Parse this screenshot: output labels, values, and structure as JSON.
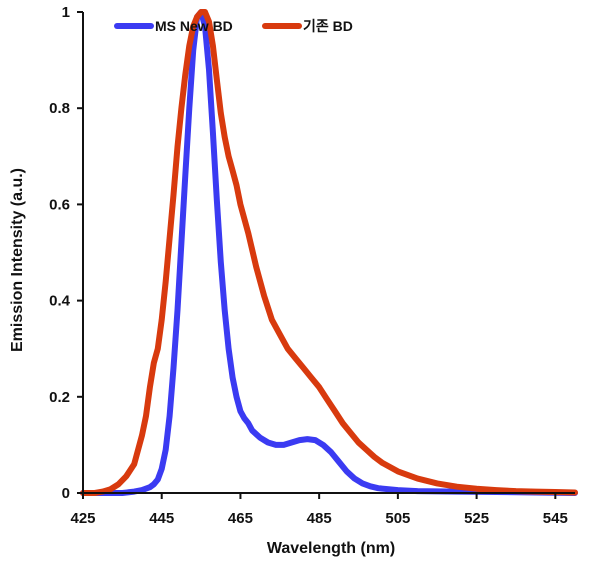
{
  "chart_data": {
    "type": "line",
    "xlabel": "Wavelength (nm)",
    "ylabel": "Emission Intensity (a.u.)",
    "xlim": [
      425,
      550
    ],
    "ylim": [
      0,
      1
    ],
    "x_ticks": [
      425,
      445,
      465,
      485,
      505,
      525,
      545
    ],
    "x_tick_labels": [
      "425",
      "445",
      "465",
      "485",
      "505",
      "525",
      "545"
    ],
    "y_ticks": [
      0,
      0.2,
      0.4,
      0.6,
      0.8,
      1
    ],
    "y_tick_labels": [
      "0",
      "0.2",
      "0.4",
      "0.6",
      "0.8",
      "1"
    ],
    "grid": false,
    "legend_position": "top-left",
    "series": [
      {
        "name": "MS New BD",
        "color": "#3b3bf2",
        "x": [
          425,
          430,
          435,
          438,
          440,
          442,
          443,
          444,
          445,
          446,
          447,
          448,
          449,
          450,
          451,
          452,
          453,
          454,
          455,
          456,
          457,
          458,
          459,
          460,
          461,
          462,
          463,
          464,
          465,
          466,
          467,
          468,
          470,
          472,
          474,
          476,
          478,
          480,
          482,
          484,
          486,
          488,
          490,
          492,
          494,
          496,
          498,
          500,
          505,
          510,
          520,
          530,
          540,
          550
        ],
        "y": [
          0,
          0,
          0,
          0.003,
          0.006,
          0.012,
          0.018,
          0.028,
          0.05,
          0.09,
          0.16,
          0.26,
          0.38,
          0.52,
          0.66,
          0.8,
          0.92,
          0.99,
          1.0,
          0.97,
          0.88,
          0.75,
          0.61,
          0.48,
          0.38,
          0.3,
          0.24,
          0.2,
          0.17,
          0.155,
          0.145,
          0.13,
          0.115,
          0.105,
          0.1,
          0.1,
          0.105,
          0.11,
          0.112,
          0.11,
          0.1,
          0.085,
          0.065,
          0.045,
          0.03,
          0.02,
          0.014,
          0.01,
          0.006,
          0.004,
          0.003,
          0.002,
          0.001,
          0
        ]
      },
      {
        "name": "기존 BD",
        "color": "#d83a0e",
        "x": [
          425,
          428,
          430,
          432,
          434,
          436,
          438,
          440,
          441,
          442,
          443,
          444,
          445,
          446,
          447,
          448,
          449,
          450,
          451,
          452,
          453,
          454,
          455,
          456,
          457,
          458,
          459,
          460,
          461,
          462,
          463,
          464,
          465,
          467,
          469,
          471,
          473,
          475,
          477,
          479,
          481,
          483,
          485,
          487,
          489,
          491,
          493,
          495,
          497,
          499,
          501,
          505,
          510,
          515,
          520,
          525,
          530,
          535,
          540,
          545,
          550
        ],
        "y": [
          0,
          0,
          0.003,
          0.008,
          0.018,
          0.035,
          0.06,
          0.12,
          0.16,
          0.22,
          0.27,
          0.3,
          0.36,
          0.44,
          0.53,
          0.62,
          0.72,
          0.8,
          0.87,
          0.93,
          0.97,
          0.99,
          1.0,
          1.0,
          0.98,
          0.93,
          0.86,
          0.79,
          0.74,
          0.7,
          0.67,
          0.64,
          0.6,
          0.54,
          0.47,
          0.41,
          0.36,
          0.33,
          0.3,
          0.28,
          0.26,
          0.24,
          0.22,
          0.195,
          0.17,
          0.145,
          0.125,
          0.105,
          0.09,
          0.075,
          0.063,
          0.045,
          0.03,
          0.02,
          0.013,
          0.009,
          0.006,
          0.004,
          0.003,
          0.002,
          0.001
        ]
      }
    ]
  }
}
